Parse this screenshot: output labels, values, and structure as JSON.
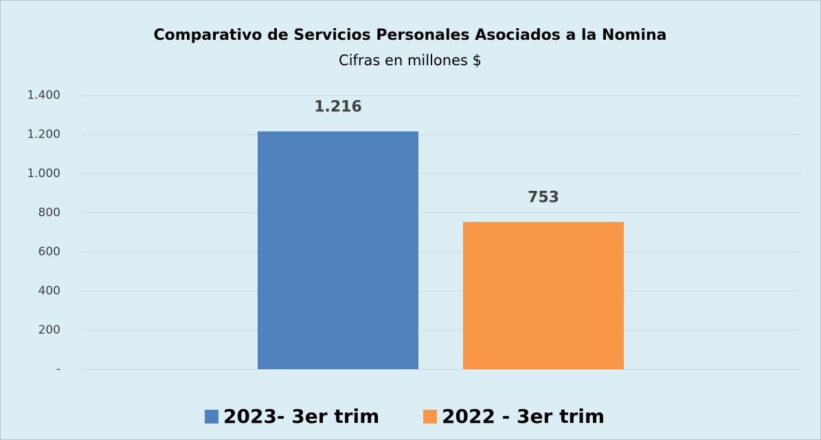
{
  "chart_data": {
    "type": "bar",
    "title": "Comparativo de Servicios Personales Asociados a la Nomina",
    "subtitle": "Cifras en millones $",
    "categories": [
      null
    ],
    "series": [
      {
        "name": "2023- 3er trim",
        "color": "#4f81bd",
        "values": [
          1216
        ],
        "value_labels": [
          "1.216"
        ]
      },
      {
        "name": "2022 - 3er trim",
        "color": "#f79646",
        "values": [
          753
        ],
        "value_labels": [
          "753"
        ]
      }
    ],
    "ylim": [
      0,
      1400
    ],
    "yticks": [
      {
        "value": 0,
        "label": "-"
      },
      200,
      400,
      600,
      800,
      {
        "value": 1000,
        "label": "1.000"
      },
      {
        "value": 1200,
        "label": "1.200"
      },
      {
        "value": 1400,
        "label": "1.400"
      }
    ],
    "grid": true,
    "legend": "bottom"
  }
}
